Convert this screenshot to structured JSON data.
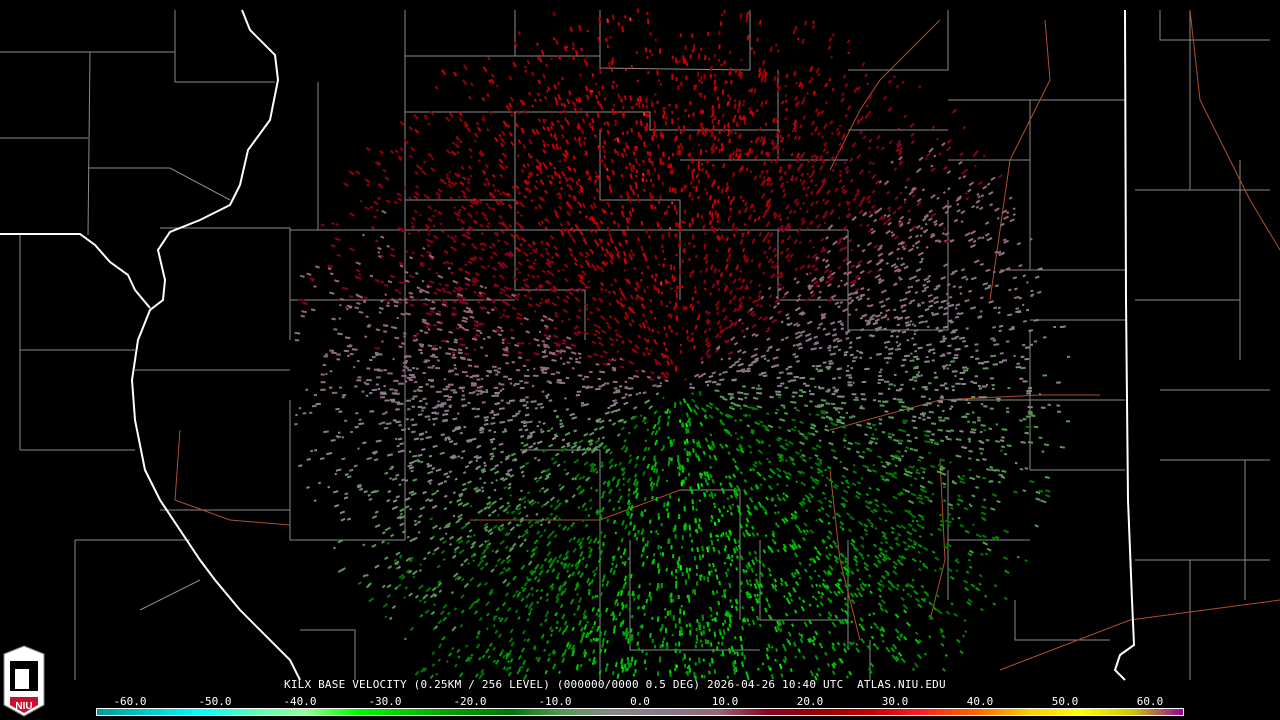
{
  "product": {
    "title": "KILX BASE VELOCITY (0.25KM / 256 LEVEL) (000000/0000 0.5 DEG) 2026-04-26 10:40 UTC  ATLAS.NIU.EDU",
    "station": "KILX",
    "elevation_deg": "0.5",
    "timestamp": "2026-04-26 10:40 UTC",
    "source": "ATLAS.NIU.EDU"
  },
  "logo": {
    "text": "NIU",
    "color": "#c8102e"
  },
  "colorbar": {
    "ticks": [
      "-60.0",
      "-50.0",
      "-40.0",
      "-30.0",
      "-20.0",
      "-10.0",
      "0.0",
      "10.0",
      "20.0",
      "30.0",
      "40.0",
      "50.0",
      "60.0"
    ],
    "range": [
      -64,
      64
    ],
    "colors": [
      "#009999",
      "#00cccc",
      "#00ffff",
      "#55ffbb",
      "#99ff99",
      "#00ff00",
      "#00cc00",
      "#009900",
      "#007700",
      "#559955",
      "#888888",
      "#887788",
      "#996677",
      "#880022",
      "#990000",
      "#cc0000",
      "#ff2222",
      "#ff6600",
      "#ffcc00",
      "#ffff00",
      "#cccc00",
      "#990099"
    ]
  },
  "map": {
    "state_border_color": "#ffffff",
    "county_color": "#8a8a8a",
    "road_color": "#b0502a"
  }
}
